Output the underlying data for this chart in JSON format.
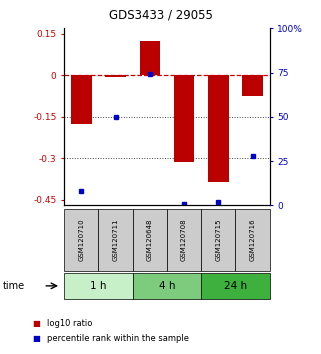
{
  "title": "GDS3433 / 29055",
  "samples": [
    "GSM120710",
    "GSM120711",
    "GSM120648",
    "GSM120708",
    "GSM120715",
    "GSM120716"
  ],
  "log10_ratio": [
    -0.175,
    -0.005,
    0.125,
    -0.315,
    -0.385,
    -0.075
  ],
  "percentile_rank": [
    8,
    50,
    74,
    1,
    2,
    28
  ],
  "time_groups": [
    {
      "label": "1 h",
      "start": 0,
      "end": 2,
      "color": "#c8f0c8"
    },
    {
      "label": "4 h",
      "start": 2,
      "end": 4,
      "color": "#7dcc7d"
    },
    {
      "label": "24 h",
      "start": 4,
      "end": 6,
      "color": "#3db03d"
    }
  ],
  "ylim_left": [
    -0.47,
    0.17
  ],
  "ylim_right": [
    0,
    100
  ],
  "yticks_left": [
    0.15,
    0.0,
    -0.15,
    -0.3,
    -0.45
  ],
  "yticks_right": [
    100,
    75,
    50,
    25,
    0
  ],
  "bar_color": "#bb0000",
  "dot_color": "#0000cc",
  "bar_width": 0.6,
  "zero_line_color": "#cc0000",
  "grid_color": "#444444",
  "sample_box_color": "#cccccc",
  "legend_red_label": "log10 ratio",
  "legend_blue_label": "percentile rank within the sample",
  "time_label": "time",
  "fig_width": 3.21,
  "fig_height": 3.54,
  "dpi": 100
}
